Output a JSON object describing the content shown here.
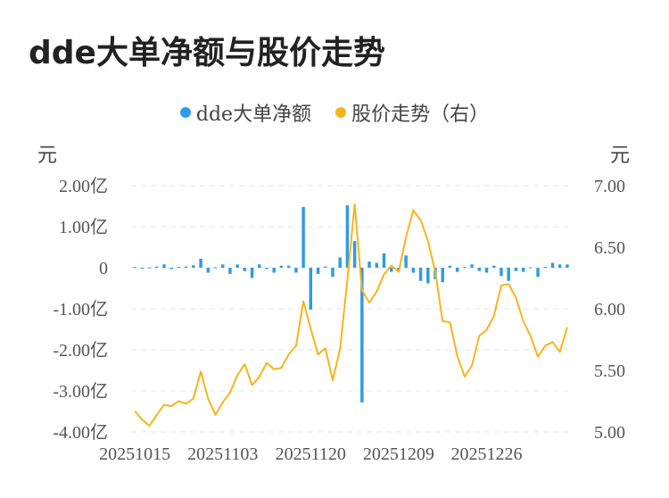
{
  "title": "dde大单净额与股价走势",
  "legend": [
    {
      "label": "dde大单净额",
      "color": "#2f9ae6"
    },
    {
      "label": "股价走势（右）",
      "color": "#f5b51c"
    }
  ],
  "units": {
    "left": "元",
    "right": "元"
  },
  "chart_data": {
    "type": "bar+line",
    "title": "dde大单净额与股价走势",
    "x_tick_labels": [
      "20251015",
      "20251103",
      "20251120",
      "20251209",
      "20251226"
    ],
    "left_axis": {
      "ticks": [
        "2.00亿",
        "1.00亿",
        "0",
        "-1.00亿",
        "-2.00亿",
        "-3.00亿",
        "-4.00亿"
      ],
      "ylim": [
        -4.0,
        2.0
      ],
      "unit": "亿元"
    },
    "right_axis": {
      "ticks": [
        "7.00",
        "6.50",
        "6.00",
        "5.50",
        "5.00"
      ],
      "ylim": [
        5.0,
        7.0
      ],
      "unit": "元"
    },
    "grid": true,
    "legend_position": "top-center",
    "series": [
      {
        "name": "dde大单净额",
        "kind": "bar",
        "axis": "left",
        "color": "#2f9ae6",
        "values": [
          0.02,
          -0.02,
          0.01,
          0.03,
          0.08,
          -0.03,
          0.02,
          0.03,
          0.06,
          0.22,
          -0.12,
          0.01,
          0.08,
          -0.15,
          0.08,
          -0.08,
          -0.25,
          0.08,
          -0.03,
          -0.12,
          0.05,
          0.05,
          -0.12,
          1.48,
          -1.02,
          -0.15,
          0.03,
          -0.22,
          0.25,
          1.52,
          0.65,
          -3.28,
          0.15,
          0.12,
          0.35,
          -0.1,
          -0.08,
          0.3,
          -0.12,
          -0.32,
          -0.38,
          -0.28,
          -0.35,
          0.05,
          -0.1,
          0.02,
          0.08,
          -0.08,
          -0.12,
          0.05,
          -0.2,
          -0.32,
          -0.08,
          -0.1,
          0.01,
          -0.22,
          0.02,
          0.12,
          0.08,
          0.08
        ]
      },
      {
        "name": "股价走势（右）",
        "kind": "line",
        "axis": "right",
        "color": "#f5b51c",
        "values": [
          5.17,
          5.1,
          5.05,
          5.14,
          5.22,
          5.21,
          5.25,
          5.23,
          5.27,
          5.49,
          5.27,
          5.14,
          5.24,
          5.32,
          5.46,
          5.55,
          5.38,
          5.45,
          5.56,
          5.51,
          5.52,
          5.63,
          5.7,
          6.06,
          5.84,
          5.63,
          5.68,
          5.42,
          5.67,
          6.23,
          6.85,
          6.15,
          6.05,
          6.14,
          6.28,
          6.35,
          6.3,
          6.58,
          6.8,
          6.72,
          6.55,
          6.3,
          5.9,
          5.89,
          5.62,
          5.45,
          5.54,
          5.78,
          5.83,
          5.94,
          6.19,
          6.2,
          6.09,
          5.9,
          5.78,
          5.61,
          5.7,
          5.73,
          5.65,
          5.85
        ]
      }
    ]
  }
}
